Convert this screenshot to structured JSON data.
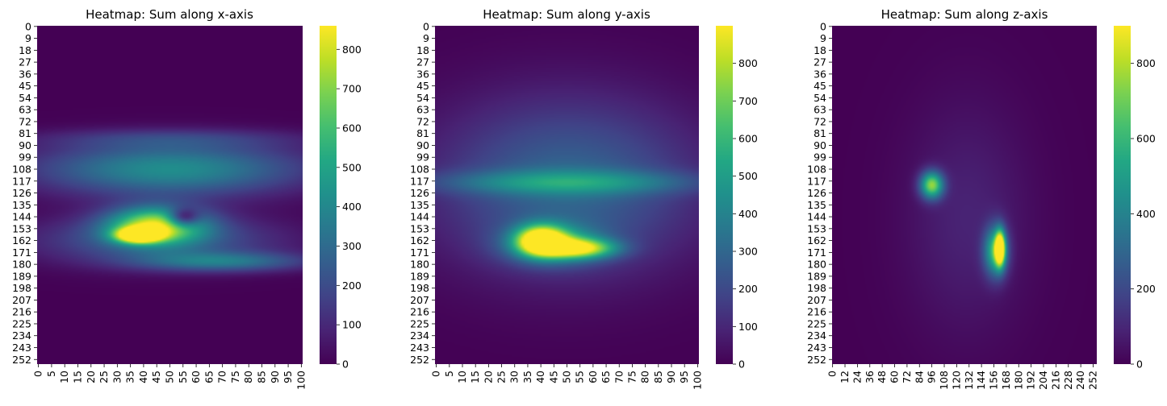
{
  "chart_data": [
    {
      "type": "heatmap",
      "title": "Heatmap: Sum along x-axis",
      "xlabel": "",
      "ylabel": "",
      "x_ticks": [
        "0",
        "5",
        "10",
        "15",
        "20",
        "25",
        "30",
        "35",
        "40",
        "45",
        "50",
        "55",
        "60",
        "65",
        "70",
        "75",
        "80",
        "85",
        "90",
        "95",
        "100"
      ],
      "y_ticks": [
        "0",
        "9",
        "18",
        "27",
        "36",
        "45",
        "54",
        "63",
        "72",
        "81",
        "90",
        "99",
        "108",
        "117",
        "126",
        "135",
        "144",
        "153",
        "162",
        "171",
        "180",
        "189",
        "198",
        "207",
        "216",
        "225",
        "234",
        "243",
        "252"
      ],
      "x_range": [
        0,
        101
      ],
      "y_range": [
        0,
        256
      ],
      "colorbar": {
        "ticks": [
          "0",
          "100",
          "200",
          "300",
          "400",
          "500",
          "600",
          "700",
          "800"
        ],
        "range": [
          0,
          860
        ]
      },
      "colormap": "viridis",
      "blobs": [
        {
          "x": 50,
          "y": 108,
          "sx": 55,
          "sy": 22,
          "v": 420
        },
        {
          "x": 50,
          "y": 85,
          "sx": 55,
          "sy": 8,
          "v": 120
        },
        {
          "x": 45,
          "y": 150,
          "sx": 20,
          "sy": 15,
          "v": 700
        },
        {
          "x": 38,
          "y": 158,
          "sx": 9,
          "sy": 6,
          "v": 820
        },
        {
          "x": 45,
          "y": 162,
          "sx": 50,
          "sy": 20,
          "v": 260
        },
        {
          "x": 70,
          "y": 178,
          "sx": 35,
          "sy": 8,
          "v": 300
        }
      ],
      "holes": [
        {
          "x": 55,
          "y": 145,
          "sx": 6,
          "sy": 7,
          "v": 420
        }
      ]
    },
    {
      "type": "heatmap",
      "title": "Heatmap: Sum along y-axis",
      "xlabel": "",
      "ylabel": "",
      "x_ticks": [
        "0",
        "5",
        "10",
        "15",
        "20",
        "25",
        "30",
        "35",
        "40",
        "45",
        "50",
        "55",
        "60",
        "65",
        "70",
        "75",
        "80",
        "85",
        "90",
        "95",
        "100"
      ],
      "y_ticks": [
        "0",
        "9",
        "18",
        "27",
        "36",
        "45",
        "54",
        "63",
        "72",
        "81",
        "90",
        "99",
        "108",
        "117",
        "126",
        "135",
        "144",
        "153",
        "162",
        "171",
        "180",
        "189",
        "198",
        "207",
        "216",
        "225",
        "234",
        "243",
        "252"
      ],
      "x_range": [
        0,
        101
      ],
      "y_range": [
        0,
        256
      ],
      "colorbar": {
        "ticks": [
          "0",
          "100",
          "200",
          "300",
          "400",
          "500",
          "600",
          "700",
          "800"
        ],
        "range": [
          0,
          900
        ]
      },
      "colormap": "viridis",
      "blobs": [
        {
          "x": 50,
          "y": 120,
          "sx": 55,
          "sy": 70,
          "v": 300
        },
        {
          "x": 50,
          "y": 118,
          "sx": 55,
          "sy": 10,
          "v": 280
        },
        {
          "x": 40,
          "y": 162,
          "sx": 10,
          "sy": 12,
          "v": 800
        },
        {
          "x": 55,
          "y": 168,
          "sx": 15,
          "sy": 8,
          "v": 600
        },
        {
          "x": 45,
          "y": 165,
          "sx": 20,
          "sy": 16,
          "v": 400
        }
      ],
      "holes": []
    },
    {
      "type": "heatmap",
      "title": "Heatmap: Sum along z-axis",
      "xlabel": "",
      "ylabel": "",
      "x_ticks": [
        "0",
        "12",
        "24",
        "36",
        "48",
        "60",
        "72",
        "84",
        "96",
        "108",
        "120",
        "132",
        "144",
        "156",
        "168",
        "180",
        "192",
        "204",
        "216",
        "228",
        "240",
        "252"
      ],
      "y_ticks": [
        "0",
        "9",
        "18",
        "27",
        "36",
        "45",
        "54",
        "63",
        "72",
        "81",
        "90",
        "99",
        "108",
        "117",
        "126",
        "135",
        "144",
        "153",
        "162",
        "171",
        "180",
        "189",
        "198",
        "207",
        "216",
        "225",
        "234",
        "243",
        "252"
      ],
      "x_range": [
        0,
        256
      ],
      "y_range": [
        0,
        256
      ],
      "colorbar": {
        "ticks": [
          "0",
          "200",
          "400",
          "600",
          "800"
        ],
        "range": [
          0,
          900
        ]
      },
      "colormap": "viridis",
      "blobs": [
        {
          "x": 130,
          "y": 145,
          "sx": 65,
          "sy": 95,
          "v": 90
        },
        {
          "x": 96,
          "y": 120,
          "sx": 12,
          "sy": 11,
          "v": 700
        },
        {
          "x": 158,
          "y": 170,
          "sx": 12,
          "sy": 20,
          "v": 600
        },
        {
          "x": 162,
          "y": 168,
          "sx": 5,
          "sy": 14,
          "v": 850
        }
      ],
      "holes": []
    }
  ]
}
